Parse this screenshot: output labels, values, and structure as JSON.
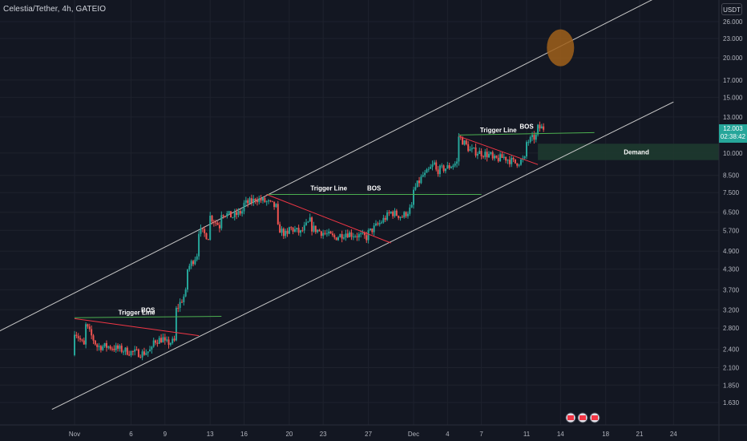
{
  "header": {
    "symbol_title": "Celestia/Tether, 4h, GATEIO",
    "currency": "USDT"
  },
  "last_price": {
    "value": "12.003",
    "countdown": "02:38:42",
    "color": "#26a69a"
  },
  "colors": {
    "background": "#131722",
    "grid": "#1e222d",
    "up_candle": "#26a69a",
    "down_candle": "#ef5350",
    "channel_line": "#c8c8c8",
    "bos_line": "#4caf50",
    "trigger_line": "#f23645",
    "demand_zone": "#1e3a2f",
    "target_circle": "#a0601a",
    "axis_text": "#b2b5be"
  },
  "chart_data": {
    "type": "candlestick",
    "price_scale": "log",
    "ylim": [
      1.5,
      28.0
    ],
    "y_ticks": [
      "26.000",
      "23.000",
      "20.000",
      "17.000",
      "15.000",
      "13.000",
      "10.000",
      "8.500",
      "7.500",
      "6.500",
      "5.700",
      "4.900",
      "4.300",
      "3.700",
      "3.200",
      "2.800",
      "2.400",
      "2.100",
      "1.850",
      "1.630"
    ],
    "x_ticks": [
      "Nov",
      "6",
      "9",
      "13",
      "16",
      "20",
      "23",
      "27",
      "Dec",
      "4",
      "7",
      "11",
      "14",
      "18",
      "21",
      "24"
    ],
    "x_tick_dates": [
      "11-01",
      "11-06",
      "11-09",
      "11-13",
      "11-16",
      "11-20",
      "11-23",
      "11-27",
      "12-01",
      "12-04",
      "12-07",
      "12-11",
      "12-14",
      "12-18",
      "12-21",
      "12-24"
    ],
    "price_path": [
      [
        "11-01",
        2.3
      ],
      [
        "11-01",
        2.75
      ],
      [
        "11-02",
        2.4
      ],
      [
        "11-02",
        2.85
      ],
      [
        "11-03",
        2.45
      ],
      [
        "11-04",
        2.45
      ],
      [
        "11-05",
        2.4
      ],
      [
        "11-06",
        2.35
      ],
      [
        "11-07",
        2.33
      ],
      [
        "11-08",
        2.4
      ],
      [
        "11-08",
        2.55
      ],
      [
        "11-09",
        2.6
      ],
      [
        "11-09",
        2.5
      ],
      [
        "11-10",
        2.55
      ],
      [
        "11-10",
        3.2
      ],
      [
        "11-11",
        3.7
      ],
      [
        "11-11",
        4.3
      ],
      [
        "11-12",
        4.9
      ],
      [
        "11-12",
        5.7
      ],
      [
        "11-13",
        5.4
      ],
      [
        "11-13",
        6.3
      ],
      [
        "11-14",
        5.8
      ],
      [
        "11-14",
        6.5
      ],
      [
        "11-15",
        6.3
      ],
      [
        "11-16",
        6.6
      ],
      [
        "11-16",
        6.9
      ],
      [
        "11-17",
        7.1
      ],
      [
        "11-17",
        7.2
      ],
      [
        "11-18",
        7.0
      ],
      [
        "11-19",
        6.7
      ],
      [
        "11-19",
        5.8
      ],
      [
        "11-20",
        5.4
      ],
      [
        "11-20",
        5.8
      ],
      [
        "11-21",
        5.6
      ],
      [
        "11-22",
        6.2
      ],
      [
        "11-22",
        5.8
      ],
      [
        "11-23",
        5.6
      ],
      [
        "11-24",
        5.4
      ],
      [
        "11-25",
        5.6
      ],
      [
        "11-26",
        5.5
      ],
      [
        "11-27",
        5.4
      ],
      [
        "11-27",
        5.6
      ],
      [
        "11-28",
        6.0
      ],
      [
        "11-29",
        6.5
      ],
      [
        "11-30",
        6.3
      ],
      [
        "12-01",
        6.8
      ],
      [
        "12-01",
        7.6
      ],
      [
        "12-02",
        8.7
      ],
      [
        "12-02",
        8.5
      ],
      [
        "12-03",
        9.4
      ],
      [
        "12-03",
        8.8
      ],
      [
        "12-04",
        9.0
      ],
      [
        "12-05",
        9.4
      ],
      [
        "12-05",
        11.3
      ],
      [
        "12-06",
        10.2
      ],
      [
        "12-07",
        10.0
      ],
      [
        "12-08",
        9.8
      ],
      [
        "12-08",
        9.5
      ],
      [
        "12-09",
        9.7
      ],
      [
        "12-10",
        9.3
      ],
      [
        "12-11",
        9.6
      ],
      [
        "12-11",
        10.8
      ],
      [
        "12-12",
        11.4
      ],
      [
        "12-12",
        12.0
      ]
    ],
    "channel_upper": [
      [
        "10-25",
        2.7
      ],
      [
        "12-24",
        33.0
      ]
    ],
    "channel_lower": [
      [
        "10-30",
        1.55
      ],
      [
        "12-24",
        14.5
      ]
    ],
    "annotations": [
      {
        "kind": "bos",
        "label": "BOS",
        "from": [
          "11-01",
          3.02
        ],
        "to": [
          "11-14",
          3.05
        ]
      },
      {
        "kind": "trigger",
        "label": "Trigger Line",
        "from": [
          "11-01",
          3.0
        ],
        "to": [
          "11-12",
          2.65
        ]
      },
      {
        "kind": "bos",
        "label": "BOS",
        "from": [
          "11-18",
          7.4
        ],
        "to": [
          "12-07",
          7.4
        ]
      },
      {
        "kind": "trigger",
        "label": "Trigger Line",
        "from": [
          "11-18",
          7.4
        ],
        "to": [
          "11-29",
          5.2
        ]
      },
      {
        "kind": "bos",
        "label": "BOS",
        "from": [
          "12-05",
          11.4
        ],
        "to": [
          "12-17",
          11.6
        ]
      },
      {
        "kind": "trigger",
        "label": "Trigger Line",
        "from": [
          "12-05",
          11.3
        ],
        "to": [
          "12-12",
          9.2
        ]
      }
    ],
    "demand_zone": {
      "label": "Demand",
      "from": "12-12",
      "price_high": 10.7,
      "price_low": 9.5
    },
    "target": {
      "date": "12-14",
      "price": 21.5
    }
  }
}
